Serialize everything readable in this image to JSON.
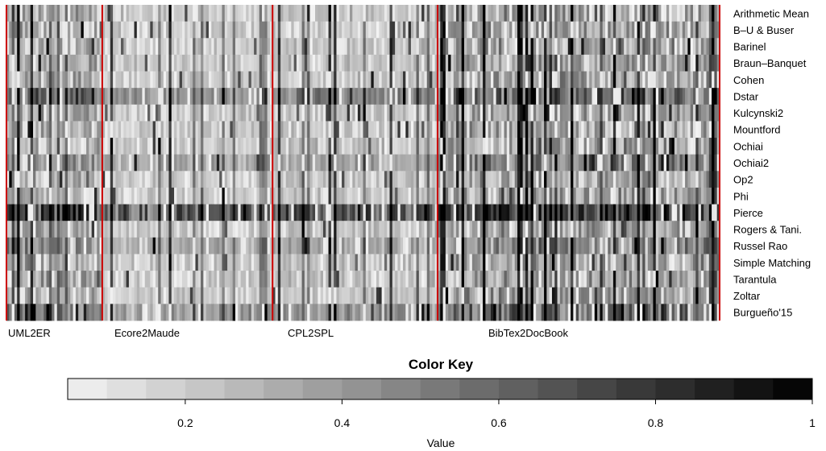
{
  "chart_data": {
    "type": "heatmap",
    "rows": [
      "Arithmetic Mean",
      "B–U & Buser",
      "Barinel",
      "Braun–Banquet",
      "Cohen",
      "Dstar",
      "Kulcynski2",
      "Mountford",
      "Ochiai",
      "Ochiai2",
      "Op2",
      "Phi",
      "Pierce",
      "Rogers & Tani.",
      "Russel Rao",
      "Simple Matching",
      "Tarantula",
      "Zoltar",
      "Burgueño'15"
    ],
    "groups": [
      {
        "label": "UML2ER",
        "start": 0,
        "end": 36
      },
      {
        "label": "Ecore2Maude",
        "start": 36,
        "end": 100
      },
      {
        "label": "CPL2SPL",
        "start": 100,
        "end": 162
      },
      {
        "label": "BibTex2DocBook",
        "start": 162,
        "end": 268
      }
    ],
    "n_columns": 268,
    "value_range": [
      0.05,
      1
    ],
    "colormap": {
      "low": "#ffffff",
      "high": "#000000"
    },
    "separator_color": "#cc0000",
    "color_key": {
      "title": "Color Key",
      "xlabel": "Value",
      "ticks": [
        0.2,
        0.4,
        0.6,
        0.8,
        1
      ]
    }
  }
}
